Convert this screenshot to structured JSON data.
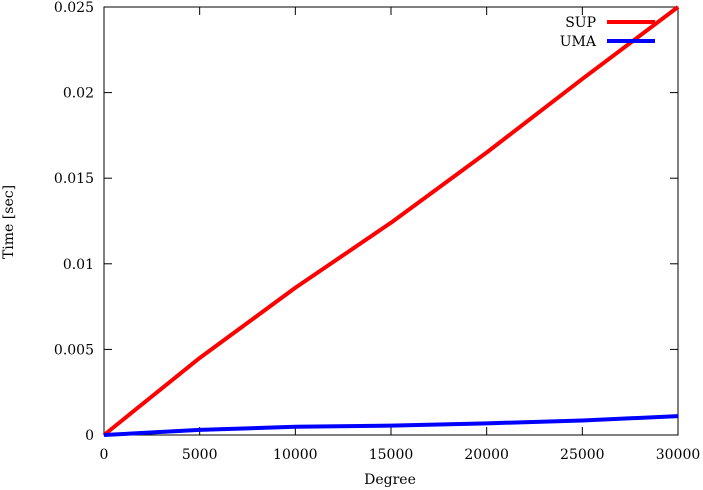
{
  "chart_data": {
    "type": "line",
    "title": "",
    "xlabel": "Degree",
    "ylabel": "Time [sec]",
    "xlim": [
      0,
      30000
    ],
    "ylim": [
      0,
      0.025
    ],
    "x_ticks": [
      0,
      5000,
      10000,
      15000,
      20000,
      25000,
      30000
    ],
    "x_tick_labels": [
      "0",
      "5000",
      "10000",
      "15000",
      "20000",
      "25000",
      "30000"
    ],
    "y_ticks": [
      0,
      0.005,
      0.01,
      0.015,
      0.02,
      0.025
    ],
    "y_tick_labels": [
      "0",
      "0.005",
      "0.01",
      "0.015",
      "0.02",
      "0.025"
    ],
    "grid": false,
    "legend_position": "top-right",
    "x": [
      0,
      5000,
      10000,
      15000,
      20000,
      25000,
      30000
    ],
    "series": [
      {
        "name": "SUP",
        "color": "#ff0000",
        "values": [
          0,
          0.0045,
          0.0086,
          0.0124,
          0.0165,
          0.0208,
          0.025
        ]
      },
      {
        "name": "UMA",
        "color": "#0000ff",
        "values": [
          0,
          0.0003,
          0.00048,
          0.00055,
          0.00068,
          0.00085,
          0.0011
        ]
      }
    ]
  }
}
